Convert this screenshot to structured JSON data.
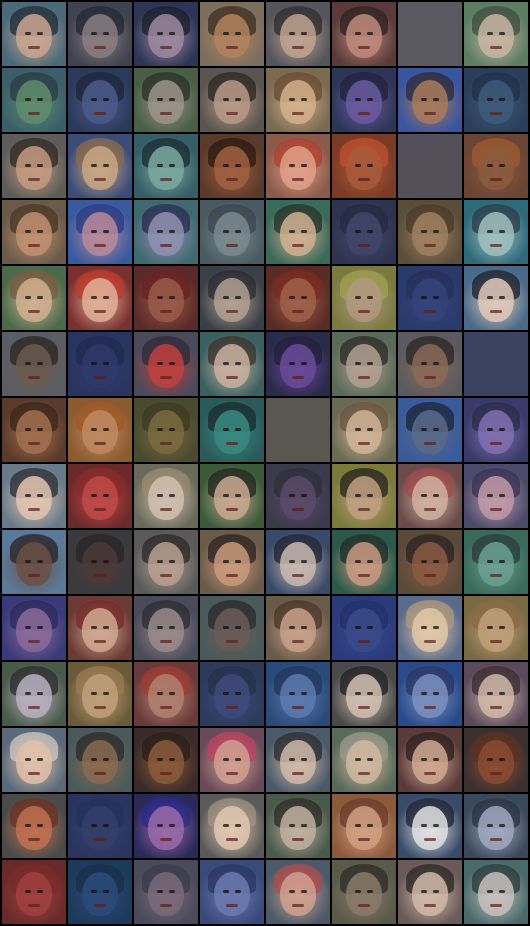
{
  "grid": {
    "columns": 8,
    "rows": 14,
    "tiles": [
      {
        "bg": "#4a6a7a",
        "skin": "#c9a58f",
        "hair": "#1e2a35",
        "blank": false
      },
      {
        "bg": "#3f4350",
        "skin": "#8a7d80",
        "hair": "#202633",
        "blank": false
      },
      {
        "bg": "#2d3556",
        "skin": "#9c8aa0",
        "hair": "#1a1c2a",
        "blank": false
      },
      {
        "bg": "#7c6e5e",
        "skin": "#b0835e",
        "hair": "#3a2c22",
        "blank": false
      },
      {
        "bg": "#55565c",
        "skin": "#c0a290",
        "hair": "#2e2a2c",
        "blank": false
      },
      {
        "bg": "#5a3a3a",
        "skin": "#c08a7a",
        "hair": "#2a2020",
        "blank": false
      },
      {
        "bg": "#5a5a60",
        "skin": "#5a5a60",
        "hair": "#5a5a60",
        "blank": true
      },
      {
        "bg": "#5b7d62",
        "skin": "#c7b5a2",
        "hair": "#3d4a3e",
        "blank": false
      },
      {
        "bg": "#3a5f6a",
        "skin": "#5f8c6d",
        "hair": "#2a3a44",
        "blank": false
      },
      {
        "bg": "#2c3a5a",
        "skin": "#4a5a8a",
        "hair": "#1c2438",
        "blank": false
      },
      {
        "bg": "#4a5e46",
        "skin": "#9a9488",
        "hair": "#2a2d26",
        "blank": false
      },
      {
        "bg": "#5a5550",
        "skin": "#b79a86",
        "hair": "#2a2420",
        "blank": false
      },
      {
        "bg": "#7a6a52",
        "skin": "#d4b08a",
        "hair": "#6a4a30",
        "blank": false
      },
      {
        "bg": "#2e3658",
        "skin": "#6a5aa0",
        "hair": "#20203a",
        "blank": false
      },
      {
        "bg": "#3a55a0",
        "skin": "#a87a5a",
        "hair": "#2a2a38",
        "blank": false
      },
      {
        "bg": "#2a3e5a",
        "skin": "#3e5a7a",
        "hair": "#22304a",
        "blank": false
      },
      {
        "bg": "#5d5c5a",
        "skin": "#c59a80",
        "hair": "#2d2522",
        "blank": false
      },
      {
        "bg": "#3c4c78",
        "skin": "#c9a682",
        "hair": "#8a6a4a",
        "blank": false
      },
      {
        "bg": "#355e66",
        "skin": "#7aa8a0",
        "hair": "#1a2a30",
        "blank": false
      },
      {
        "bg": "#5a3a2a",
        "skin": "#a06040",
        "hair": "#2a1812",
        "blank": false
      },
      {
        "bg": "#8a5a4a",
        "skin": "#e0a088",
        "hair": "#b04030",
        "blank": false
      },
      {
        "bg": "#7a3a26",
        "skin": "#a85a3a",
        "hair": "#c05030",
        "blank": false
      },
      {
        "bg": "#54505a",
        "skin": "#54505a",
        "hair": "#54505a",
        "blank": true
      },
      {
        "bg": "#6a4434",
        "skin": "#8a5a40",
        "hair": "#a05a30",
        "blank": false
      },
      {
        "bg": "#6a5a4a",
        "skin": "#c09070",
        "hair": "#4a3426",
        "blank": false
      },
      {
        "bg": "#3a5aa0",
        "skin": "#b88a9a",
        "hair": "#2a3a80",
        "blank": false
      },
      {
        "bg": "#3f6a70",
        "skin": "#9090b0",
        "hair": "#2a2a50",
        "blank": false
      },
      {
        "bg": "#4a5a62",
        "skin": "#7a8a8e",
        "hair": "#3a4450",
        "blank": false
      },
      {
        "bg": "#3a6a5a",
        "skin": "#d0b090",
        "hair": "#203028",
        "blank": false
      },
      {
        "bg": "#2e3450",
        "skin": "#40466a",
        "hair": "#262a40",
        "blank": false
      },
      {
        "bg": "#5a4e3a",
        "skin": "#a08060",
        "hair": "#4a3a28",
        "blank": false
      },
      {
        "bg": "#2e6a7a",
        "skin": "#a0c0c0",
        "hair": "#2a3a44",
        "blank": false
      },
      {
        "bg": "#4a6a4a",
        "skin": "#d0b090",
        "hair": "#7a5a40",
        "blank": false
      },
      {
        "bg": "#7a3030",
        "skin": "#e0b098",
        "hair": "#c03a2a",
        "blank": false
      },
      {
        "bg": "#5a2a2a",
        "skin": "#9a5a4a",
        "hair": "#6a2222",
        "blank": false
      },
      {
        "bg": "#3a4048",
        "skin": "#b0a092",
        "hair": "#2a2a30",
        "blank": false
      },
      {
        "bg": "#5a2a24",
        "skin": "#a0604a",
        "hair": "#7a2a20",
        "blank": false
      },
      {
        "bg": "#7a7a40",
        "skin": "#b09880",
        "hair": "#a0a050",
        "blank": false
      },
      {
        "bg": "#2a3a6a",
        "skin": "#34447a",
        "hair": "#24305a",
        "blank": false
      },
      {
        "bg": "#4a6a8a",
        "skin": "#e0c8b8",
        "hair": "#1a1e2a",
        "blank": false
      },
      {
        "bg": "#5a5e64",
        "skin": "#6a5a50",
        "hair": "#2a2420",
        "blank": false
      },
      {
        "bg": "#2a3460",
        "skin": "#2e3a6a",
        "hair": "#222a50",
        "blank": false
      },
      {
        "bg": "#4a4a5a",
        "skin": "#c04040",
        "hair": "#2a2a3a",
        "blank": false
      },
      {
        "bg": "#3a6060",
        "skin": "#c8b0a0",
        "hair": "#3a3028",
        "blank": false
      },
      {
        "bg": "#2a2a4a",
        "skin": "#6a4a9a",
        "hair": "#20203a",
        "blank": false
      },
      {
        "bg": "#5a6a5a",
        "skin": "#b0a090",
        "hair": "#2a2a26",
        "blank": false
      },
      {
        "bg": "#5a5a60",
        "skin": "#8a6a56",
        "hair": "#2a2424",
        "blank": false
      },
      {
        "bg": "#3a4460",
        "skin": "#3a4460",
        "hair": "#3a4460",
        "blank": true
      },
      {
        "bg": "#5a3a2a",
        "skin": "#a07050",
        "hair": "#3a2418",
        "blank": false
      },
      {
        "bg": "#8a5a30",
        "skin": "#c08a60",
        "hair": "#a05a26",
        "blank": false
      },
      {
        "bg": "#4a4a30",
        "skin": "#7a6a40",
        "hair": "#3a3a22",
        "blank": false
      },
      {
        "bg": "#2a5a5a",
        "skin": "#3a8a80",
        "hair": "#1a2a2e",
        "blank": false
      },
      {
        "bg": "#5a5650",
        "skin": "#5a5650",
        "hair": "#5a5650",
        "blank": true
      },
      {
        "bg": "#6a6a52",
        "skin": "#d0b498",
        "hair": "#6a5440",
        "blank": false
      },
      {
        "bg": "#3a5a9a",
        "skin": "#5a6a8a",
        "hair": "#1a2438",
        "blank": false
      },
      {
        "bg": "#3a3a6a",
        "skin": "#8070b0",
        "hair": "#2a2a4a",
        "blank": false
      },
      {
        "bg": "#6a7a8a",
        "skin": "#e0c4b0",
        "hair": "#2a2a30",
        "blank": false
      },
      {
        "bg": "#6a2a2a",
        "skin": "#c04a48",
        "hair": "#8a2a2a",
        "blank": false
      },
      {
        "bg": "#6a6a5a",
        "skin": "#d0c0b0",
        "hair": "#9a8a70",
        "blank": false
      },
      {
        "bg": "#3a5a3a",
        "skin": "#c8a890",
        "hair": "#20241e",
        "blank": false
      },
      {
        "bg": "#3a3a4a",
        "skin": "#5a4a6a",
        "hair": "#2e2e3a",
        "blank": false
      },
      {
        "bg": "#7a7a3a",
        "skin": "#c0a080",
        "hair": "#22201a",
        "blank": false
      },
      {
        "bg": "#6a4a4a",
        "skin": "#d0b0a0",
        "hair": "#a04a4a",
        "blank": false
      },
      {
        "bg": "#4a4a6a",
        "skin": "#c09aa8",
        "hair": "#3a3050",
        "blank": false
      },
      {
        "bg": "#5a7a9a",
        "skin": "#6a5048",
        "hair": "#2a2224",
        "blank": false
      },
      {
        "bg": "#3a3a3e",
        "skin": "#4a3a38",
        "hair": "#2a2424",
        "blank": false
      },
      {
        "bg": "#5a5a5a",
        "skin": "#b8a090",
        "hair": "#2a2626",
        "blank": false
      },
      {
        "bg": "#6a5a4a",
        "skin": "#c89a7a",
        "hair": "#2a2020",
        "blank": false
      },
      {
        "bg": "#3a4a6a",
        "skin": "#c8b8b0",
        "hair": "#1e2030",
        "blank": false
      },
      {
        "bg": "#2a5a4a",
        "skin": "#c89a80",
        "hair": "#1e2a28",
        "blank": false
      },
      {
        "bg": "#5a4a3a",
        "skin": "#8a5a44",
        "hair": "#2a2222",
        "blank": false
      },
      {
        "bg": "#3a6a5a",
        "skin": "#6aa090",
        "hair": "#2a3a3a",
        "blank": false
      },
      {
        "bg": "#3a3a7a",
        "skin": "#8a6a9a",
        "hair": "#2a2a5a",
        "blank": false
      },
      {
        "bg": "#6a3a34",
        "skin": "#d0a890",
        "hair": "#7a2a2a",
        "blank": false
      },
      {
        "bg": "#4a4a5a",
        "skin": "#9a8a8a",
        "hair": "#2a2a30",
        "blank": false
      },
      {
        "bg": "#4a5a5a",
        "skin": "#6a5a58",
        "hair": "#2a2a2a",
        "blank": false
      },
      {
        "bg": "#6a5a4a",
        "skin": "#c8a088",
        "hair": "#4a3428",
        "blank": false
      },
      {
        "bg": "#2a3a7a",
        "skin": "#3a4a8a",
        "hair": "#22306a",
        "blank": false
      },
      {
        "bg": "#5a6a8a",
        "skin": "#e0c8a8",
        "hair": "#b09a78",
        "blank": false
      },
      {
        "bg": "#7a6a44",
        "skin": "#c0a078",
        "hair": "#8a6a40",
        "blank": false
      },
      {
        "bg": "#4a5a4a",
        "skin": "#b8b0c0",
        "hair": "#2a2a2e",
        "blank": false
      },
      {
        "bg": "#6a5a3a",
        "skin": "#c0a078",
        "hair": "#9a7a50",
        "blank": false
      },
      {
        "bg": "#6a3a3a",
        "skin": "#b08070",
        "hair": "#a03a30",
        "blank": false
      },
      {
        "bg": "#2e3a5a",
        "skin": "#3e4a7a",
        "hair": "#26304a",
        "blank": false
      },
      {
        "bg": "#2a4a7a",
        "skin": "#5a7ab0",
        "hair": "#22345a",
        "blank": false
      },
      {
        "bg": "#4a4a4a",
        "skin": "#d0c0b0",
        "hair": "#1e1e22",
        "blank": false
      },
      {
        "bg": "#2a4a8a",
        "skin": "#7a90c0",
        "hair": "#2a3460",
        "blank": false
      },
      {
        "bg": "#5a4a5a",
        "skin": "#d0b8a8",
        "hair": "#3a2a30",
        "blank": false
      },
      {
        "bg": "#5a6a7a",
        "skin": "#e0c0a8",
        "hair": "#d0c8c0",
        "blank": false
      },
      {
        "bg": "#4a5a5a",
        "skin": "#8a6a50",
        "hair": "#2a2a2a",
        "blank": false
      },
      {
        "bg": "#3a2a2a",
        "skin": "#8a5a3a",
        "hair": "#2a1e1a",
        "blank": false
      },
      {
        "bg": "#6a4a5a",
        "skin": "#d0a090",
        "hair": "#c04060",
        "blank": false
      },
      {
        "bg": "#4a5a6a",
        "skin": "#d0b8a8",
        "hair": "#2a2a2e",
        "blank": false
      },
      {
        "bg": "#5a6a5a",
        "skin": "#d0b8a0",
        "hair": "#9a9a8a",
        "blank": false
      },
      {
        "bg": "#5a3a3a",
        "skin": "#d0a890",
        "hair": "#2a1e1e",
        "blank": false
      },
      {
        "bg": "#3a3030",
        "skin": "#8a4a30",
        "hair": "#5a3020",
        "blank": false
      },
      {
        "bg": "#4a4a4a",
        "skin": "#c07050",
        "hair": "#6a3020",
        "blank": false
      },
      {
        "bg": "#2a3460",
        "skin": "#34406a",
        "hair": "#24305a",
        "blank": false
      },
      {
        "bg": "#2a2a5a",
        "skin": "#9a6aa8",
        "hair": "#2a2a8a",
        "blank": false
      },
      {
        "bg": "#5a5a5a",
        "skin": "#e0c8b0",
        "hair": "#a09080",
        "blank": false
      },
      {
        "bg": "#4a5a4a",
        "skin": "#c0b0a0",
        "hair": "#2a2a26",
        "blank": false
      },
      {
        "bg": "#8a5a3a",
        "skin": "#d0a080",
        "hair": "#6a3a2a",
        "blank": false
      },
      {
        "bg": "#3a4a6a",
        "skin": "#e0e0e0",
        "hair": "#1e2230",
        "blank": false
      },
      {
        "bg": "#3a4a5a",
        "skin": "#a0a8c0",
        "hair": "#2a3040",
        "blank": false
      },
      {
        "bg": "#6a2a2a",
        "skin": "#a04040",
        "hair": "#7a2a2a",
        "blank": false
      },
      {
        "bg": "#1e3a5a",
        "skin": "#2a4a7a",
        "hair": "#1a2e4a",
        "blank": false
      },
      {
        "bg": "#4a4a5a",
        "skin": "#7a6a7a",
        "hair": "#3a3a4a",
        "blank": false
      },
      {
        "bg": "#3a4a7a",
        "skin": "#6a7ab0",
        "hair": "#2a3460",
        "blank": false
      },
      {
        "bg": "#4a5a6a",
        "skin": "#d0a090",
        "hair": "#b04a4a",
        "blank": false
      },
      {
        "bg": "#5a5a4a",
        "skin": "#8a7a6a",
        "hair": "#2a2a26",
        "blank": false
      },
      {
        "bg": "#6a5a5a",
        "skin": "#d0b8a8",
        "hair": "#2a2424",
        "blank": false
      },
      {
        "bg": "#4a6a6a",
        "skin": "#c8c0c0",
        "hair": "#2a3a3a",
        "blank": false
      }
    ]
  }
}
